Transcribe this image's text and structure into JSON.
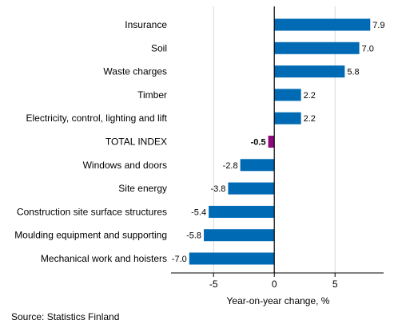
{
  "chart_data": {
    "type": "bar",
    "orientation": "horizontal",
    "categories": [
      "Insurance",
      "Soil",
      "Waste charges",
      "Timber",
      "Electricity, control, lighting and lift",
      "TOTAL INDEX",
      "Windows and doors",
      "Site energy",
      "Construction site surface structures",
      "Moulding equipment and supporting",
      "Mechanical work and hoisters"
    ],
    "values": [
      7.9,
      7.0,
      5.8,
      2.2,
      2.2,
      -0.5,
      -2.8,
      -3.8,
      -5.4,
      -5.8,
      -7.0
    ],
    "value_labels": [
      "7.9",
      "7.0",
      "5.8",
      "2.2",
      "2.2",
      "-0.5",
      "-2.8",
      "-3.8",
      "-5.4",
      "-5.8",
      "-7.0"
    ],
    "highlight_category": "TOTAL INDEX",
    "xlabel": "Year-on-year change, %",
    "xlim": [
      -8.5,
      9
    ],
    "xticks": [
      -5,
      0,
      5
    ],
    "xtick_labels": [
      "-5",
      "0",
      "5"
    ],
    "grid": true,
    "colors": {
      "bar": "#006ab4",
      "highlight": "#8a0a7c",
      "grid": "#d9d9d9",
      "axis": "#000000"
    }
  },
  "source": "Source: Statistics Finland"
}
